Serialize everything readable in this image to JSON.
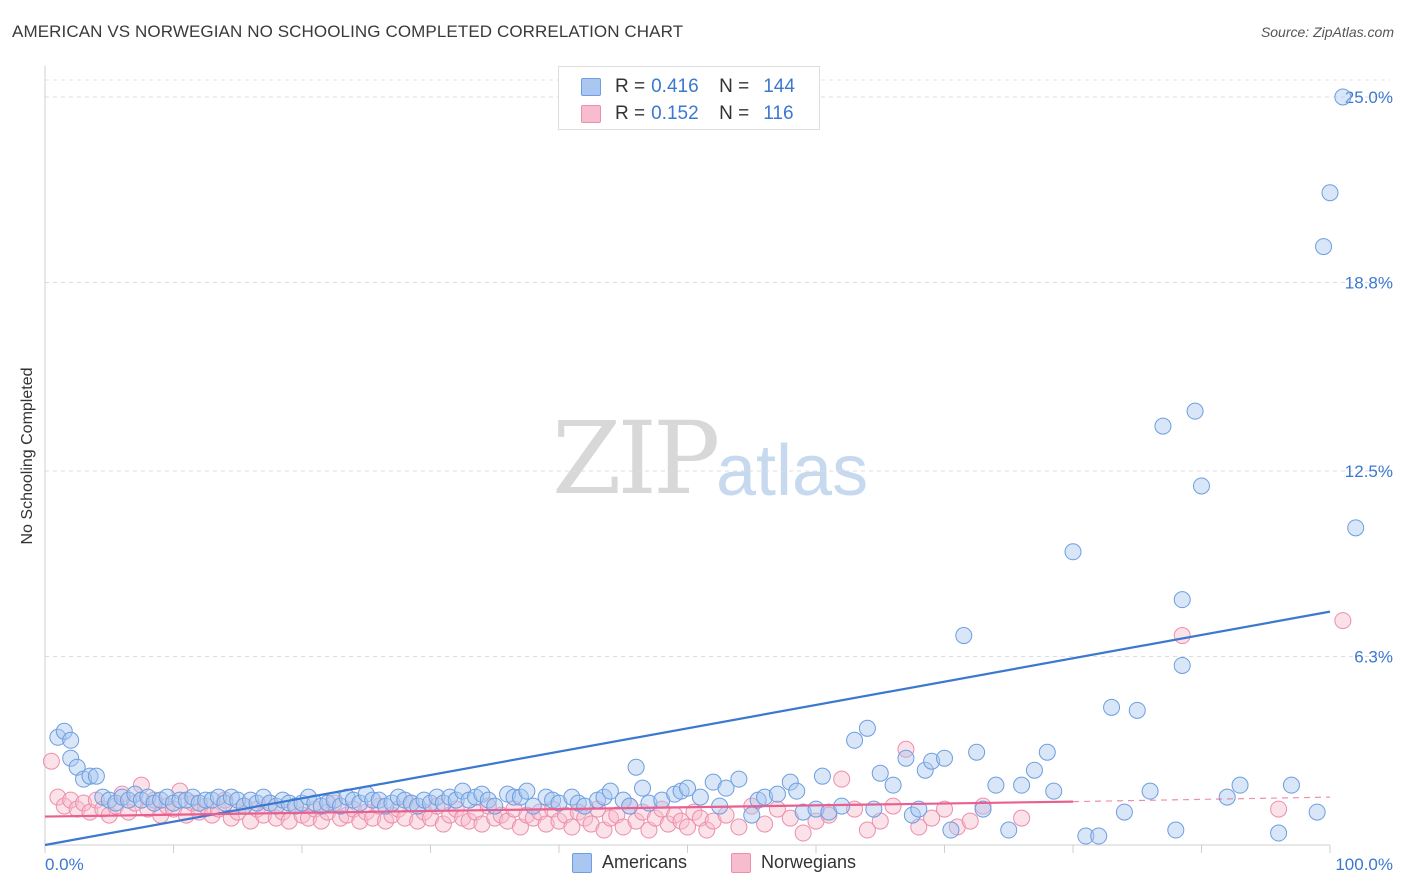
{
  "header": {
    "title": "AMERICAN VS NORWEGIAN NO SCHOOLING COMPLETED CORRELATION CHART",
    "source": "Source: ZipAtlas.com"
  },
  "watermark": {
    "zip": "ZIP",
    "atlas": "atlas"
  },
  "legend_top": {
    "rows": [
      {
        "r_label": "R =",
        "r_value": "0.416",
        "n_label": "N =",
        "n_value": "144",
        "color": "#a9c7f0",
        "border": "#6d9ee0"
      },
      {
        "r_label": "R =",
        "r_value": "0.152",
        "n_label": "N =",
        "n_value": "116",
        "color": "#f7bccd",
        "border": "#ec8fac"
      }
    ]
  },
  "legend_bottom": {
    "items": [
      {
        "label": "Americans",
        "color": "#a9c7f0",
        "border": "#6d9ee0"
      },
      {
        "label": "Norwegians",
        "color": "#f7bccd",
        "border": "#ec8fac"
      }
    ]
  },
  "chart_data": {
    "type": "scatter",
    "title": "AMERICAN VS NORWEGIAN NO SCHOOLING COMPLETED CORRELATION CHART",
    "xlabel": "",
    "ylabel": "No Schooling Completed",
    "xlim": [
      0,
      100
    ],
    "ylim": [
      0,
      26
    ],
    "x_tick_labels": [
      "0.0%",
      "100.0%"
    ],
    "y_ticks": [
      6.3,
      12.5,
      18.8,
      25.0
    ],
    "y_tick_labels": [
      "6.3%",
      "12.5%",
      "18.8%",
      "25.0%"
    ],
    "grid": true,
    "legend_position": "top-center",
    "colors": {
      "Americans": "#3b78d0",
      "Norwegians": "#e86090"
    },
    "series": [
      {
        "name": "Americans",
        "trend": {
          "x": [
            0,
            100
          ],
          "y": [
            0.0,
            7.8
          ]
        },
        "points": [
          [
            1,
            3.6
          ],
          [
            1.5,
            3.8
          ],
          [
            2,
            3.5
          ],
          [
            2,
            2.9
          ],
          [
            2.5,
            2.6
          ],
          [
            3,
            2.2
          ],
          [
            3.5,
            2.3
          ],
          [
            4,
            2.3
          ],
          [
            4.5,
            1.6
          ],
          [
            5,
            1.5
          ],
          [
            5.5,
            1.4
          ],
          [
            6,
            1.6
          ],
          [
            6.5,
            1.5
          ],
          [
            7,
            1.7
          ],
          [
            7.5,
            1.5
          ],
          [
            8,
            1.6
          ],
          [
            8.5,
            1.4
          ],
          [
            9,
            1.5
          ],
          [
            9.5,
            1.6
          ],
          [
            10,
            1.4
          ],
          [
            10.5,
            1.5
          ],
          [
            11,
            1.5
          ],
          [
            11.5,
            1.6
          ],
          [
            12,
            1.4
          ],
          [
            12.5,
            1.5
          ],
          [
            13,
            1.5
          ],
          [
            13.5,
            1.6
          ],
          [
            14,
            1.4
          ],
          [
            14.5,
            1.6
          ],
          [
            15,
            1.5
          ],
          [
            15.5,
            1.3
          ],
          [
            16,
            1.5
          ],
          [
            16.5,
            1.4
          ],
          [
            17,
            1.6
          ],
          [
            17.5,
            1.4
          ],
          [
            18,
            1.3
          ],
          [
            18.5,
            1.5
          ],
          [
            19,
            1.4
          ],
          [
            19.5,
            1.3
          ],
          [
            20,
            1.4
          ],
          [
            20.5,
            1.6
          ],
          [
            21,
            1.4
          ],
          [
            21.5,
            1.3
          ],
          [
            22,
            1.4
          ],
          [
            22.5,
            1.5
          ],
          [
            23,
            1.3
          ],
          [
            23.5,
            1.6
          ],
          [
            24,
            1.5
          ],
          [
            24.5,
            1.4
          ],
          [
            25,
            1.7
          ],
          [
            25.5,
            1.5
          ],
          [
            26,
            1.5
          ],
          [
            26.5,
            1.3
          ],
          [
            27,
            1.4
          ],
          [
            27.5,
            1.6
          ],
          [
            28,
            1.5
          ],
          [
            28.5,
            1.4
          ],
          [
            29,
            1.3
          ],
          [
            29.5,
            1.5
          ],
          [
            30,
            1.4
          ],
          [
            30.5,
            1.6
          ],
          [
            31,
            1.4
          ],
          [
            31.5,
            1.6
          ],
          [
            32,
            1.5
          ],
          [
            32.5,
            1.8
          ],
          [
            33,
            1.5
          ],
          [
            33.5,
            1.6
          ],
          [
            34,
            1.7
          ],
          [
            34.5,
            1.5
          ],
          [
            35,
            1.3
          ],
          [
            36,
            1.7
          ],
          [
            36.5,
            1.6
          ],
          [
            37,
            1.6
          ],
          [
            37.5,
            1.8
          ],
          [
            38,
            1.3
          ],
          [
            39,
            1.6
          ],
          [
            39.5,
            1.5
          ],
          [
            40,
            1.4
          ],
          [
            41,
            1.6
          ],
          [
            41.5,
            1.4
          ],
          [
            42,
            1.3
          ],
          [
            43,
            1.5
          ],
          [
            43.5,
            1.6
          ],
          [
            44,
            1.8
          ],
          [
            45,
            1.5
          ],
          [
            45.5,
            1.3
          ],
          [
            46,
            2.6
          ],
          [
            46.5,
            1.9
          ],
          [
            47,
            1.4
          ],
          [
            48,
            1.5
          ],
          [
            49,
            1.7
          ],
          [
            49.5,
            1.8
          ],
          [
            50,
            1.9
          ],
          [
            51,
            1.6
          ],
          [
            52,
            2.1
          ],
          [
            52.5,
            1.3
          ],
          [
            53,
            1.9
          ],
          [
            54,
            2.2
          ],
          [
            55,
            1.0
          ],
          [
            55.5,
            1.5
          ],
          [
            56,
            1.6
          ],
          [
            57,
            1.7
          ],
          [
            58,
            2.1
          ],
          [
            58.5,
            1.8
          ],
          [
            59,
            1.1
          ],
          [
            60,
            1.2
          ],
          [
            60.5,
            2.3
          ],
          [
            61,
            1.1
          ],
          [
            62,
            1.3
          ],
          [
            63,
            3.5
          ],
          [
            64,
            3.9
          ],
          [
            64.5,
            1.2
          ],
          [
            65,
            2.4
          ],
          [
            66,
            2.0
          ],
          [
            67,
            2.9
          ],
          [
            67.5,
            1.0
          ],
          [
            68,
            1.2
          ],
          [
            68.5,
            2.5
          ],
          [
            69,
            2.8
          ],
          [
            70,
            2.9
          ],
          [
            70.5,
            0.5
          ],
          [
            71.5,
            7.0
          ],
          [
            72.5,
            3.1
          ],
          [
            73,
            1.2
          ],
          [
            74,
            2.0
          ],
          [
            75,
            0.5
          ],
          [
            76,
            2.0
          ],
          [
            77,
            2.5
          ],
          [
            78,
            3.1
          ],
          [
            78.5,
            1.8
          ],
          [
            80,
            9.8
          ],
          [
            81,
            0.3
          ],
          [
            82,
            0.3
          ],
          [
            83,
            4.6
          ],
          [
            84,
            1.1
          ],
          [
            85,
            4.5
          ],
          [
            86,
            1.8
          ],
          [
            87,
            14.0
          ],
          [
            88.5,
            8.2
          ],
          [
            88,
            0.5
          ],
          [
            88.5,
            6.0
          ],
          [
            89.5,
            14.5
          ],
          [
            90,
            12.0
          ],
          [
            92,
            1.6
          ],
          [
            93,
            2.0
          ],
          [
            96,
            0.4
          ],
          [
            97,
            2.0
          ],
          [
            99,
            1.1
          ],
          [
            99.5,
            20.0
          ],
          [
            100,
            21.8
          ],
          [
            101,
            25.0
          ],
          [
            102,
            10.6
          ]
        ]
      },
      {
        "name": "Norwegians",
        "trend": {
          "x": [
            0,
            80
          ],
          "y": [
            0.95,
            1.45
          ],
          "dashed_x": [
            80,
            100
          ],
          "dashed_y": [
            1.45,
            1.6
          ]
        },
        "points": [
          [
            0.5,
            2.8
          ],
          [
            1,
            1.6
          ],
          [
            1.5,
            1.3
          ],
          [
            2,
            1.5
          ],
          [
            2.5,
            1.2
          ],
          [
            3,
            1.4
          ],
          [
            3.5,
            1.1
          ],
          [
            4,
            1.5
          ],
          [
            4.5,
            1.2
          ],
          [
            5,
            1.0
          ],
          [
            5.5,
            1.3
          ],
          [
            6,
            1.7
          ],
          [
            6.5,
            1.1
          ],
          [
            7,
            1.4
          ],
          [
            7.5,
            2.0
          ],
          [
            8,
            1.2
          ],
          [
            8.5,
            1.5
          ],
          [
            9,
            1.0
          ],
          [
            9.5,
            1.3
          ],
          [
            10,
            1.2
          ],
          [
            10.5,
            1.8
          ],
          [
            11,
            1.0
          ],
          [
            11.5,
            1.4
          ],
          [
            12,
            1.1
          ],
          [
            12.5,
            1.3
          ],
          [
            13,
            1.0
          ],
          [
            13.5,
            1.2
          ],
          [
            14,
            1.5
          ],
          [
            14.5,
            0.9
          ],
          [
            15,
            1.1
          ],
          [
            15.5,
            1.3
          ],
          [
            16,
            0.8
          ],
          [
            16.5,
            1.2
          ],
          [
            17,
            1.0
          ],
          [
            17.5,
            1.4
          ],
          [
            18,
            0.9
          ],
          [
            18.5,
            1.1
          ],
          [
            19,
            0.8
          ],
          [
            19.5,
            1.3
          ],
          [
            20,
            1.0
          ],
          [
            20.5,
            0.9
          ],
          [
            21,
            1.2
          ],
          [
            21.5,
            0.8
          ],
          [
            22,
            1.1
          ],
          [
            22.5,
            1.4
          ],
          [
            23,
            0.9
          ],
          [
            23.5,
            1.0
          ],
          [
            24,
            1.2
          ],
          [
            24.5,
            0.8
          ],
          [
            25,
            1.1
          ],
          [
            25.5,
            0.9
          ],
          [
            26,
            1.3
          ],
          [
            26.5,
            0.8
          ],
          [
            27,
            1.0
          ],
          [
            27.5,
            1.2
          ],
          [
            28,
            0.9
          ],
          [
            28.5,
            1.4
          ],
          [
            29,
            0.8
          ],
          [
            29.5,
            1.1
          ],
          [
            30,
            0.9
          ],
          [
            30.5,
            1.3
          ],
          [
            31,
            0.7
          ],
          [
            31.5,
            1.0
          ],
          [
            32,
            1.2
          ],
          [
            32.5,
            0.9
          ],
          [
            33,
            0.8
          ],
          [
            33.5,
            1.1
          ],
          [
            34,
            0.7
          ],
          [
            34.5,
            1.3
          ],
          [
            35,
            0.9
          ],
          [
            35.5,
            1.0
          ],
          [
            36,
            0.8
          ],
          [
            36.5,
            1.2
          ],
          [
            37,
            0.6
          ],
          [
            37.5,
            1.0
          ],
          [
            38,
            0.9
          ],
          [
            38.5,
            1.1
          ],
          [
            39,
            0.7
          ],
          [
            39.5,
            1.2
          ],
          [
            40,
            0.8
          ],
          [
            40.5,
            1.0
          ],
          [
            41,
            0.6
          ],
          [
            41.5,
            1.1
          ],
          [
            42,
            0.9
          ],
          [
            42.5,
            0.7
          ],
          [
            43,
            1.2
          ],
          [
            43.5,
            0.5
          ],
          [
            44,
            0.9
          ],
          [
            44.5,
            1.0
          ],
          [
            45,
            0.6
          ],
          [
            45.5,
            1.3
          ],
          [
            46,
            0.8
          ],
          [
            46.5,
            1.1
          ],
          [
            47,
            0.5
          ],
          [
            47.5,
            0.9
          ],
          [
            48,
            1.2
          ],
          [
            48.5,
            0.7
          ],
          [
            49,
            1.0
          ],
          [
            49.5,
            0.8
          ],
          [
            50,
            0.6
          ],
          [
            50.5,
            1.1
          ],
          [
            51,
            0.9
          ],
          [
            51.5,
            0.5
          ],
          [
            52,
            0.8
          ],
          [
            53,
            1.0
          ],
          [
            54,
            0.6
          ],
          [
            55,
            1.3
          ],
          [
            56,
            0.7
          ],
          [
            57,
            1.2
          ],
          [
            58,
            0.9
          ],
          [
            59,
            0.4
          ],
          [
            60,
            0.8
          ],
          [
            61,
            1.0
          ],
          [
            62,
            2.2
          ],
          [
            63,
            1.2
          ],
          [
            64,
            0.5
          ],
          [
            65,
            0.8
          ],
          [
            66,
            1.3
          ],
          [
            67,
            3.2
          ],
          [
            68,
            0.6
          ],
          [
            69,
            0.9
          ],
          [
            70,
            1.2
          ],
          [
            71,
            0.6
          ],
          [
            72,
            0.8
          ],
          [
            73,
            1.3
          ],
          [
            76,
            0.9
          ],
          [
            88.5,
            7.0
          ],
          [
            96,
            1.2
          ],
          [
            101,
            7.5
          ]
        ]
      }
    ]
  }
}
